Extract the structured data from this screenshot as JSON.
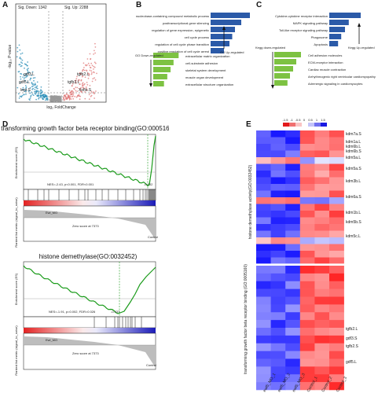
{
  "panels": {
    "a": "A",
    "b": "B",
    "c": "C",
    "d": "D",
    "e": "E"
  },
  "panelA": {
    "sig_down": "Sig. Down: 1342",
    "sig_up": "Sig. Up: 2288",
    "ylabel": "-log₁₀ P-value",
    "xlabel": "log₂ FoldChange",
    "genes_left": [
      "gdf3.L",
      "gdf5.L",
      "lepr.S"
    ],
    "genes_right": [
      "tgfb2.L",
      "tgfb3.L",
      "Xofle.S"
    ]
  },
  "panelB": {
    "up_terms": [
      "nucleobase-containing compound metabolic process",
      "posttranscriptional gene silencing",
      "regulation of gene expression, epigenetic",
      "cell cycle process",
      "regulation of cell cycle phase transition",
      "positive regulation of cell cycle arrest"
    ],
    "down_terms": [
      "extracellular matrix organization",
      "cell-substrate adhesion",
      "skeletal system development",
      "muscle organ development",
      "extracellular structure organization"
    ],
    "up_label": "GO Up-regulated",
    "down_label": "GO Down-regulated",
    "up_values": [
      1.0,
      0.78,
      0.62,
      0.55,
      0.48,
      0.34
    ],
    "down_values": [
      0.85,
      0.68,
      0.58,
      0.47,
      0.36
    ]
  },
  "panelC": {
    "up_terms": [
      "Cytokine-cytokine receptor interaction",
      "MAPK signaling pathway",
      "Toll-like receptor signaling pathway",
      "Phagosome",
      "Apoptosis"
    ],
    "down_terms": [
      "Cell adhesion molecules",
      "ECM-receptor interaction",
      "Cardiac muscle contraction",
      "Arrhythmogenic right ventricular cardiomyopathy",
      "Adrenergic signaling in cardiomyocytes"
    ],
    "up_label": "Kegg Up-regulated",
    "down_label": "Kegg down-regulated",
    "up_values": [
      1.0,
      0.62,
      0.5,
      0.38,
      0.28
    ],
    "down_values": [
      0.85,
      0.7,
      0.6,
      0.5,
      0.42
    ]
  },
  "panelD1": {
    "title": "transforming growth factor beta receptor binding(GO:0005160)",
    "ylabel_es": "Enrichment score (ES)",
    "ylabel_rank": "Ranked list metric (signal_to_noise)",
    "stats": "NES=-2.43, p<0.001, FDR<0.001",
    "peak_label": "-0.702",
    "pos_label": "Ewl_MO",
    "neg_label": "Control",
    "zero_label": "Zero score at 7373"
  },
  "panelD2": {
    "title": "histone demethylase(GO:0032452)",
    "ylabel_es": "Enrichment score (ES)",
    "ylabel_rank": "Ranked list metric (signal_to_noise)",
    "stats": "NES=-1.91, p=0.002, FDR=0.026",
    "peak_label": "-0.437",
    "pos_label": "Ewl_MO",
    "neg_label": "Control",
    "zero_label": "Zero score at 7373"
  },
  "panelE": {
    "ylabel_top": "histone demethylase activity(GO:0032452)",
    "ylabel_bottom": "transforming growth factor beta receptor binding (GO:0005160)",
    "columns": [
      "ewl5_MO_1",
      "ewl5_MO_2",
      "ewl5_MO_3",
      "Control_1",
      "Control_2",
      "Control_3"
    ],
    "genes_top": [
      "kdm7a.S",
      "kdm1a.L",
      "kdm6b.L",
      "kdm6b.S",
      "kdm5a.L",
      "kdm5a.S",
      "kdm3b.L",
      "kdm6a.S",
      "kdm1b.L",
      "kdm5b.S",
      "kdm5c.L"
    ],
    "genes_bottom": [
      "tgfb2.L",
      "gdf3.S",
      "tgfb2.S",
      "gdf5.L"
    ],
    "legend_labels": [
      "-1.5",
      "-1",
      "-0.5",
      "0",
      "0.5",
      "1",
      "1.5"
    ]
  }
}
